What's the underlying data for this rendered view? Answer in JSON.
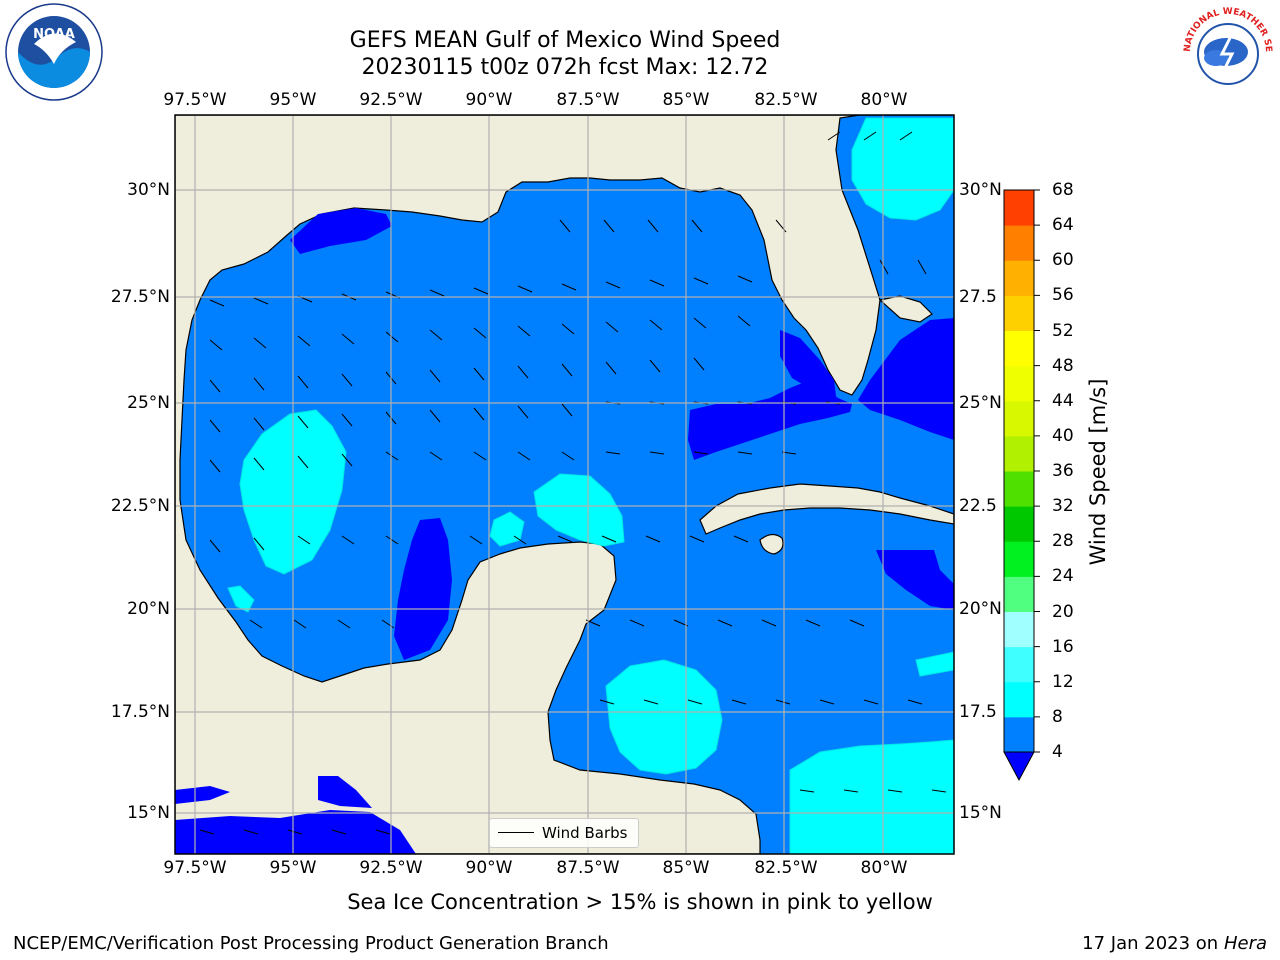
{
  "title": {
    "line1": "GEFS MEAN Gulf of Mexico Wind Speed",
    "line2": "20230115 t00z 072h fcst   Max: 12.72"
  },
  "map": {
    "lon_labels": [
      "97.5°W",
      "95°W",
      "92.5°W",
      "90°W",
      "87.5°W",
      "85°W",
      "82.5°W",
      "80°W"
    ],
    "lon_values": [
      -97.5,
      -95,
      -92.5,
      -90,
      -87.5,
      -85,
      -82.5,
      -80
    ],
    "lat_labels": [
      "30°N",
      "27.5°N",
      "25°N",
      "22.5°N",
      "20°N",
      "17.5°N",
      "15°N"
    ],
    "lat_right_labels": [
      "30°N",
      "27.5",
      "25°N",
      "22.5",
      "20°N",
      "17.5",
      "15°N"
    ],
    "lat_values": [
      30,
      27.5,
      25,
      22.5,
      20,
      17.5,
      15
    ],
    "lon_range": [
      -98,
      -78
    ],
    "lat_range": [
      14,
      31.5
    ],
    "land_color": "#efeedc",
    "grid": true,
    "legend": {
      "label": "Wind Barbs",
      "placement": "bottom-center"
    }
  },
  "colorbar": {
    "label": "Wind Speed [m/s]",
    "ticks": [
      "4",
      "8",
      "12",
      "16",
      "20",
      "24",
      "28",
      "32",
      "36",
      "40",
      "44",
      "48",
      "52",
      "56",
      "60",
      "64",
      "68"
    ],
    "colors": [
      "#0080ff",
      "#00ffff",
      "#40ffff",
      "#a0ffff",
      "#50ff80",
      "#00f020",
      "#00c800",
      "#50e000",
      "#b0f000",
      "#d8f800",
      "#f0ff00",
      "#ffff00",
      "#ffd000",
      "#ffb000",
      "#ff8000",
      "#ff4000"
    ],
    "extend_color": "#0000ff"
  },
  "wind_colors": {
    "lt4": "#0000ff",
    "c4_8": "#0080ff",
    "c8_12": "#00ffff"
  },
  "footer": {
    "note": "Sea Ice Concentration > 15% is shown in pink to yellow",
    "left": "NCEP/EMC/Verification Post Processing Product Generation Branch",
    "right_prefix": "17 Jan 2023 on ",
    "right_host": "Hera"
  },
  "logos": {
    "noaa": "NOAA",
    "nws": "NATIONAL WEATHER SERVICE"
  }
}
